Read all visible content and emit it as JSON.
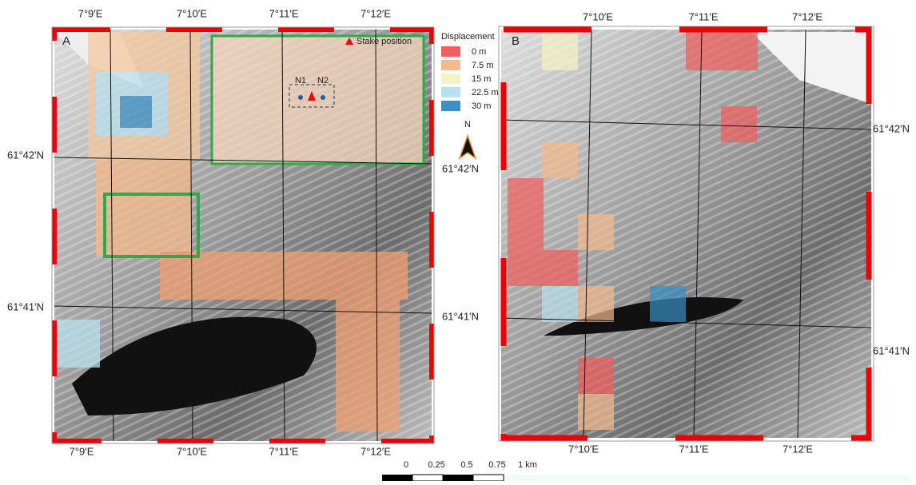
{
  "panel_a": {
    "label": "A",
    "top_lon": [
      "7°9′E",
      "7°10′E",
      "7°11′E",
      "7°12′E"
    ],
    "bottom_lon": [
      "7°9′E",
      "7°10′E",
      "7°11′E",
      "7°12′E"
    ],
    "left_lat": [
      "61°42′N",
      "61°41′N"
    ],
    "right_lat": [
      "61°42′N",
      "61°41′N"
    ],
    "inset": {
      "legend": "Stake position",
      "points": [
        "N1",
        "N2"
      ]
    }
  },
  "legend": {
    "title": "Displacement",
    "items": [
      {
        "label": "0 m",
        "color": "#f25c5c"
      },
      {
        "label": "7.5 m",
        "color": "#f5b98a"
      },
      {
        "label": "15 m",
        "color": "#f3f3c6"
      },
      {
        "label": "22.5 m",
        "color": "#b9e0ee"
      },
      {
        "label": "30 m",
        "color": "#3a8fc4"
      }
    ],
    "north": "N"
  },
  "panel_b": {
    "label": "B",
    "top_lon": [
      "7°10′E",
      "7°11′E",
      "7°12′E"
    ],
    "bottom_lon": [
      "7°10′E",
      "7°11′E",
      "7°12′E"
    ],
    "right_lat": [
      "61°42′N",
      "61°41′N"
    ]
  },
  "scale_bar": {
    "labels": [
      "0",
      "0.25",
      "0.5",
      "0.75",
      "1 km"
    ]
  }
}
